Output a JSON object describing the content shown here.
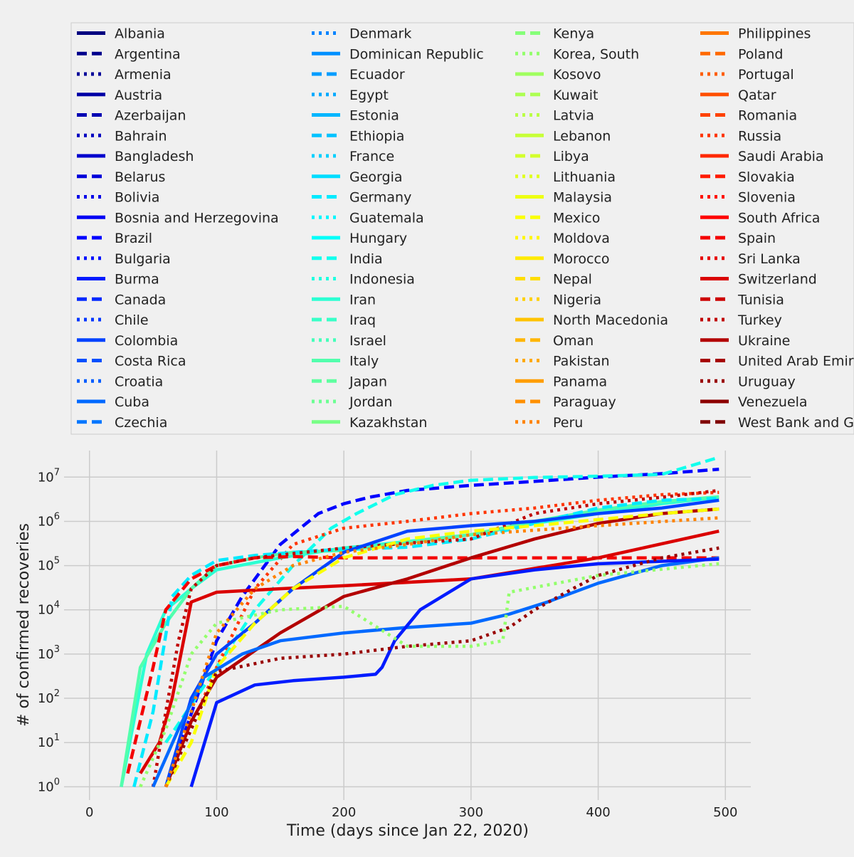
{
  "chart_data": {
    "type": "line",
    "title": "",
    "xlabel": "Time (days since Jan 22, 2020)",
    "ylabel": "# of confirmed recoveries",
    "xlim": [
      -20,
      520
    ],
    "ylim_exponent": [
      -0.3,
      7.6
    ],
    "y_scale": "log",
    "x_ticks": [
      0,
      100,
      200,
      300,
      400,
      500
    ],
    "x_tick_labels": [
      "0",
      "100",
      "200",
      "300",
      "400",
      "500"
    ],
    "y_tick_exponents": [
      0,
      1,
      2,
      3,
      4,
      5,
      6,
      7
    ],
    "y_tick_base": "10",
    "grid": true,
    "legend_placement": "top, above plot, 4 columns",
    "colormap": "jet",
    "line_styles_cycle": [
      "solid",
      "dashed",
      "dotted"
    ],
    "series": [
      {
        "name": "Albania"
      },
      {
        "name": "Argentina"
      },
      {
        "name": "Armenia"
      },
      {
        "name": "Austria"
      },
      {
        "name": "Azerbaijan"
      },
      {
        "name": "Bahrain"
      },
      {
        "name": "Bangladesh"
      },
      {
        "name": "Belarus"
      },
      {
        "name": "Bolivia"
      },
      {
        "name": "Bosnia and Herzegovina"
      },
      {
        "name": "Brazil"
      },
      {
        "name": "Bulgaria"
      },
      {
        "name": "Burma"
      },
      {
        "name": "Canada"
      },
      {
        "name": "Chile"
      },
      {
        "name": "Colombia"
      },
      {
        "name": "Costa Rica"
      },
      {
        "name": "Croatia"
      },
      {
        "name": "Cuba"
      },
      {
        "name": "Czechia"
      },
      {
        "name": "Denmark"
      },
      {
        "name": "Dominican Republic"
      },
      {
        "name": "Ecuador"
      },
      {
        "name": "Egypt"
      },
      {
        "name": "Estonia"
      },
      {
        "name": "Ethiopia"
      },
      {
        "name": "France"
      },
      {
        "name": "Georgia"
      },
      {
        "name": "Germany"
      },
      {
        "name": "Guatemala"
      },
      {
        "name": "Hungary"
      },
      {
        "name": "India"
      },
      {
        "name": "Indonesia"
      },
      {
        "name": "Iran"
      },
      {
        "name": "Iraq"
      },
      {
        "name": "Israel"
      },
      {
        "name": "Italy"
      },
      {
        "name": "Japan"
      },
      {
        "name": "Jordan"
      },
      {
        "name": "Kazakhstan"
      },
      {
        "name": "Kenya"
      },
      {
        "name": "Korea, South"
      },
      {
        "name": "Kosovo"
      },
      {
        "name": "Kuwait"
      },
      {
        "name": "Latvia"
      },
      {
        "name": "Lebanon"
      },
      {
        "name": "Libya"
      },
      {
        "name": "Lithuania"
      },
      {
        "name": "Malaysia"
      },
      {
        "name": "Mexico"
      },
      {
        "name": "Moldova"
      },
      {
        "name": "Morocco"
      },
      {
        "name": "Nepal"
      },
      {
        "name": "Nigeria"
      },
      {
        "name": "North Macedonia"
      },
      {
        "name": "Oman"
      },
      {
        "name": "Pakistan"
      },
      {
        "name": "Panama"
      },
      {
        "name": "Paraguay"
      },
      {
        "name": "Peru"
      },
      {
        "name": "Philippines"
      },
      {
        "name": "Poland"
      },
      {
        "name": "Portugal"
      },
      {
        "name": "Qatar"
      },
      {
        "name": "Romania"
      },
      {
        "name": "Russia"
      },
      {
        "name": "Saudi Arabia"
      },
      {
        "name": "Slovakia"
      },
      {
        "name": "Slovenia"
      },
      {
        "name": "South Africa"
      },
      {
        "name": "Spain"
      },
      {
        "name": "Sri Lanka"
      },
      {
        "name": "Switzerland"
      },
      {
        "name": "Tunisia"
      },
      {
        "name": "Turkey"
      },
      {
        "name": "Ukraine"
      },
      {
        "name": "United Arab Emirates"
      },
      {
        "name": "Uruguay"
      },
      {
        "name": "Venezuela"
      },
      {
        "name": "West Bank and Gaza"
      }
    ],
    "highlighted_series": [
      {
        "name": "Brazil",
        "x": [
          60,
          100,
          120,
          150,
          180,
          200,
          220,
          250,
          300,
          350,
          400,
          450,
          495
        ],
        "y": [
          1,
          2000,
          20000,
          300000,
          1500000,
          2500000,
          3500000,
          5000000,
          6500000,
          8000000,
          10000000,
          12000000,
          15000000
        ]
      },
      {
        "name": "India",
        "x": [
          60,
          100,
          130,
          160,
          190,
          210,
          240,
          270,
          300,
          350,
          400,
          450,
          495
        ],
        "y": [
          10,
          500,
          10000,
          100000,
          700000,
          1500000,
          4000000,
          6500000,
          8500000,
          9800000,
          10500000,
          11500000,
          28000000
        ]
      },
      {
        "name": "Russia",
        "x": [
          60,
          100,
          130,
          160,
          200,
          250,
          300,
          350,
          400,
          450,
          495
        ],
        "y": [
          1,
          500,
          30000,
          300000,
          700000,
          1000000,
          1500000,
          2000000,
          3000000,
          4000000,
          4500000
        ]
      },
      {
        "name": "Iran",
        "x": [
          25,
          45,
          60,
          80,
          100,
          150,
          200,
          250,
          300,
          350,
          400,
          450,
          495
        ],
        "y": [
          1,
          1000,
          10000,
          30000,
          80000,
          150000,
          250000,
          350000,
          500000,
          900000,
          1500000,
          2500000,
          3500000
        ]
      },
      {
        "name": "Italy",
        "x": [
          25,
          40,
          60,
          80,
          100,
          130,
          160,
          200,
          300,
          350,
          400,
          450,
          495
        ],
        "y": [
          1,
          500,
          5000,
          30000,
          100000,
          150000,
          200000,
          220000,
          500000,
          1000000,
          1800000,
          2800000,
          3600000
        ]
      },
      {
        "name": "Germany",
        "x": [
          35,
          50,
          65,
          80,
          100,
          130,
          180,
          250,
          300,
          350,
          400,
          450,
          495
        ],
        "y": [
          1,
          50,
          20000,
          60000,
          130000,
          170000,
          220000,
          260000,
          400000,
          900000,
          2000000,
          3000000,
          3300000
        ]
      },
      {
        "name": "Spain",
        "x": [
          30,
          50,
          60,
          80,
          100,
          130,
          160,
          200,
          300,
          400,
          495
        ],
        "y": [
          2,
          500,
          10000,
          50000,
          100000,
          150000,
          160000,
          150000,
          150000,
          150000,
          150000
        ]
      },
      {
        "name": "Turkey",
        "x": [
          50,
          60,
          70,
          80,
          100,
          130,
          200,
          250,
          300,
          350,
          400,
          450,
          495
        ],
        "y": [
          1,
          50,
          2000,
          30000,
          100000,
          150000,
          250000,
          320000,
          400000,
          1500000,
          2500000,
          3500000,
          5000000
        ]
      },
      {
        "name": "Switzerland",
        "x": [
          40,
          55,
          65,
          80,
          100,
          150,
          200,
          300,
          400,
          495
        ],
        "y": [
          2,
          10,
          100,
          15000,
          25000,
          30000,
          35000,
          50000,
          150000,
          600000
        ]
      },
      {
        "name": "Ukraine",
        "x": [
          60,
          80,
          100,
          150,
          200,
          250,
          300,
          350,
          400,
          450,
          495
        ],
        "y": [
          1,
          30,
          300,
          3000,
          20000,
          50000,
          150000,
          400000,
          900000,
          1500000,
          1900000
        ]
      },
      {
        "name": "Colombia",
        "x": [
          60,
          80,
          100,
          130,
          160,
          200,
          250,
          300,
          350,
          400,
          450,
          495
        ],
        "y": [
          1,
          100,
          1000,
          5000,
          30000,
          200000,
          600000,
          800000,
          1000000,
          1500000,
          2000000,
          3000000
        ]
      },
      {
        "name": "Mexico",
        "x": [
          60,
          80,
          100,
          130,
          160,
          200,
          250,
          300,
          350,
          400,
          450,
          495
        ],
        "y": [
          1,
          10,
          500,
          5000,
          30000,
          150000,
          400000,
          600000,
          800000,
          1100000,
          1500000,
          1900000
        ]
      },
      {
        "name": "Cuba",
        "x": [
          50,
          70,
          90,
          120,
          150,
          200,
          250,
          300,
          330,
          360,
          400,
          450,
          495
        ],
        "y": [
          1,
          20,
          300,
          1000,
          2000,
          3000,
          4000,
          5000,
          8000,
          15000,
          40000,
          100000,
          150000
        ]
      },
      {
        "name": "Burma",
        "x": [
          80,
          100,
          130,
          160,
          200,
          225,
          230,
          240,
          260,
          300,
          350,
          400,
          495
        ],
        "y": [
          1,
          80,
          200,
          250,
          300,
          350,
          500,
          2000,
          10000,
          50000,
          80000,
          110000,
          140000
        ]
      },
      {
        "name": "Korea, South",
        "x": [
          40,
          60,
          80,
          100,
          150,
          200,
          250,
          300,
          325,
          330,
          400,
          495
        ],
        "y": [
          1,
          20,
          1000,
          5000,
          10000,
          12000,
          1500,
          1500,
          2000,
          25000,
          60000,
          110000
        ]
      },
      {
        "name": "Uruguay",
        "x": [
          60,
          100,
          150,
          200,
          250,
          300,
          330,
          350,
          380,
          400,
          450,
          495
        ],
        "y": [
          1,
          400,
          800,
          1000,
          1500,
          2000,
          4000,
          10000,
          30000,
          60000,
          150000,
          250000
        ]
      },
      {
        "name": "Peru",
        "x": [
          60,
          80,
          100,
          130,
          160,
          200,
          250,
          300,
          400,
          495
        ],
        "y": [
          1,
          50,
          3000,
          30000,
          100000,
          200000,
          300000,
          500000,
          800000,
          1200000
        ]
      }
    ]
  }
}
